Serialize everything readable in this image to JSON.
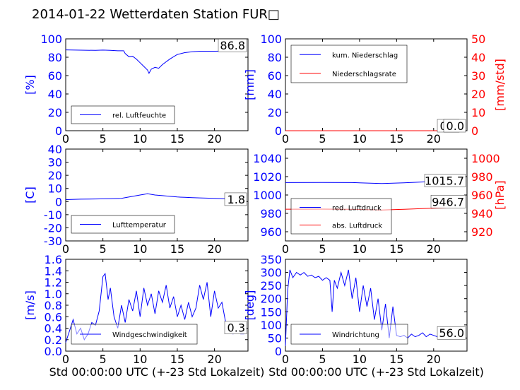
{
  "title": "2014-01-22 Wetterdaten Station FUR□",
  "colors": {
    "left_axis": "#0000ff",
    "right_axis": "#ff0000",
    "series_blue": "#0000ff",
    "series_red": "#ff0000"
  },
  "chart_data": [
    {
      "type": "line",
      "panel": "top-left",
      "ylabel": "[%]",
      "xlim": [
        0,
        24.5
      ],
      "ylim": [
        0,
        100
      ],
      "xticks": [
        0,
        5,
        10,
        15,
        20
      ],
      "yticks": [
        0,
        20,
        40,
        60,
        80,
        100
      ],
      "legend": {
        "position": "lower-left"
      },
      "last_value_label": "86.8",
      "series": [
        {
          "name": "rel. Luftfeuchte",
          "color": "#0000ff",
          "points": [
            [
              0,
              88
            ],
            [
              2,
              87.7
            ],
            [
              4,
              87.5
            ],
            [
              5,
              87.8
            ],
            [
              6,
              87.5
            ],
            [
              7,
              87
            ],
            [
              7.8,
              87
            ],
            [
              8,
              84
            ],
            [
              8.5,
              80.5
            ],
            [
              9,
              81
            ],
            [
              9.5,
              78
            ],
            [
              10,
              74
            ],
            [
              10.5,
              70
            ],
            [
              11,
              66
            ],
            [
              11.2,
              62.5
            ],
            [
              11.5,
              67
            ],
            [
              12,
              69
            ],
            [
              12.5,
              68
            ],
            [
              13,
              72
            ],
            [
              14,
              78
            ],
            [
              15,
              83
            ],
            [
              16,
              85
            ],
            [
              17,
              86
            ],
            [
              18,
              86.5
            ],
            [
              20,
              86.5
            ],
            [
              22,
              86.8
            ],
            [
              24,
              86.8
            ]
          ]
        }
      ]
    },
    {
      "type": "line",
      "panel": "top-right",
      "ylabel": "[mm]",
      "ylabel_right": "[mm/std]",
      "xlim": [
        0,
        24.5
      ],
      "ylim": [
        0,
        100
      ],
      "ylim_right": [
        0,
        50
      ],
      "xticks": [
        0,
        5,
        10,
        15,
        20
      ],
      "yticks": [
        0,
        20,
        40,
        60,
        80,
        100
      ],
      "yticks_right": [
        0,
        10,
        20,
        30,
        40,
        50
      ],
      "legend": {
        "position": "top-left"
      },
      "last_value_label": "0.0",
      "last_value_label_2": "0.0",
      "series": [
        {
          "name": "kum. Niederschlag",
          "color": "#0000ff",
          "points": [
            [
              0,
              0
            ],
            [
              24,
              0
            ]
          ]
        },
        {
          "name": "Niederschlagsrate",
          "color": "#ff0000",
          "axis": "right",
          "points": [
            [
              0,
              0
            ],
            [
              24,
              0
            ]
          ]
        }
      ]
    },
    {
      "type": "line",
      "panel": "middle-left",
      "ylabel": "[C]",
      "xlim": [
        0,
        24.5
      ],
      "ylim": [
        -30,
        40
      ],
      "xticks": [
        0,
        5,
        10,
        15,
        20
      ],
      "yticks": [
        -30,
        -20,
        -10,
        0,
        10,
        20,
        30,
        40
      ],
      "legend": {
        "position": "lower-left"
      },
      "last_value_label": "1.8",
      "series": [
        {
          "name": "Lufttemperatur",
          "color": "#0000ff",
          "points": [
            [
              0,
              1.5
            ],
            [
              2,
              1.8
            ],
            [
              4,
              2
            ],
            [
              6,
              2.2
            ],
            [
              7.5,
              2.4
            ],
            [
              8,
              3
            ],
            [
              9,
              4
            ],
            [
              10,
              5
            ],
            [
              10.5,
              5.5
            ],
            [
              11,
              6
            ],
            [
              11.5,
              5.5
            ],
            [
              12,
              5
            ],
            [
              13,
              4.5
            ],
            [
              14,
              4
            ],
            [
              15,
              3.5
            ],
            [
              16,
              3.2
            ],
            [
              17,
              3
            ],
            [
              18,
              2.8
            ],
            [
              20,
              2.4
            ],
            [
              22,
              2
            ],
            [
              24,
              1.8
            ]
          ]
        }
      ]
    },
    {
      "type": "line",
      "panel": "middle-right",
      "ylabel_right": "[hPa]",
      "xlim": [
        0,
        24.5
      ],
      "ylim": [
        950,
        1050
      ],
      "ylim_right": [
        910,
        1010
      ],
      "xticks": [
        0,
        5,
        10,
        15,
        20
      ],
      "yticks": [
        960,
        980,
        1000,
        1020,
        1040
      ],
      "yticks_right": [
        920,
        940,
        960,
        980,
        1000
      ],
      "legend": {
        "position": "lower-left"
      },
      "last_value_label": "1015.7",
      "last_value_label_2": "946.7",
      "series": [
        {
          "name": "red. Luftdruck",
          "color": "#0000ff",
          "points": [
            [
              0,
              1013.5
            ],
            [
              5,
              1013.7
            ],
            [
              9,
              1013.5
            ],
            [
              13,
              1012.5
            ],
            [
              16,
              1013.3
            ],
            [
              20,
              1014.7
            ],
            [
              24,
              1015.7
            ]
          ]
        },
        {
          "name": "abs. Luftdruck",
          "color": "#ff0000",
          "axis": "right",
          "points": [
            [
              0,
              944.5
            ],
            [
              5,
              944.6
            ],
            [
              9,
              944.4
            ],
            [
              13,
              943.6
            ],
            [
              16,
              944.4
            ],
            [
              20,
              945.7
            ],
            [
              24,
              946.7
            ]
          ]
        }
      ]
    },
    {
      "type": "line",
      "panel": "bottom-left",
      "ylabel": "[m/s]",
      "xlabel": "Std 00:00:00 UTC (+-23 Std Lokalzeit)",
      "xlim": [
        0,
        24.5
      ],
      "ylim": [
        0,
        1.6
      ],
      "xticks": [
        0,
        5,
        10,
        15,
        20
      ],
      "yticks": [
        0.0,
        0.2,
        0.4,
        0.6,
        0.8,
        1.0,
        1.2,
        1.4,
        1.6
      ],
      "legend": {
        "position": "lower-center"
      },
      "last_value_label": "0.3",
      "series": [
        {
          "name": "Windgeschwindigkeit",
          "color": "#0000ff",
          "points": [
            [
              0,
              0.15
            ],
            [
              0.5,
              0.35
            ],
            [
              1,
              0.55
            ],
            [
              1.5,
              0.3
            ],
            [
              2,
              0.4
            ],
            [
              2.5,
              0.2
            ],
            [
              3,
              0.3
            ],
            [
              3.5,
              0.5
            ],
            [
              4,
              0.45
            ],
            [
              4.5,
              0.7
            ],
            [
              5,
              1.3
            ],
            [
              5.3,
              1.35
            ],
            [
              5.7,
              0.9
            ],
            [
              6,
              1.1
            ],
            [
              6.5,
              0.6
            ],
            [
              7,
              0.4
            ],
            [
              7.5,
              0.8
            ],
            [
              8,
              0.5
            ],
            [
              8.5,
              0.9
            ],
            [
              9,
              0.7
            ],
            [
              9.5,
              1.05
            ],
            [
              10,
              0.6
            ],
            [
              10.5,
              1.1
            ],
            [
              11,
              0.8
            ],
            [
              11.5,
              1.0
            ],
            [
              12,
              0.65
            ],
            [
              12.5,
              1.05
            ],
            [
              13,
              0.85
            ],
            [
              13.5,
              1.15
            ],
            [
              14,
              0.75
            ],
            [
              14.5,
              0.95
            ],
            [
              15,
              0.6
            ],
            [
              15.5,
              0.8
            ],
            [
              16,
              0.55
            ],
            [
              16.5,
              0.85
            ],
            [
              17,
              0.6
            ],
            [
              17.5,
              0.75
            ],
            [
              18,
              1.15
            ],
            [
              18.5,
              0.9
            ],
            [
              19,
              1.2
            ],
            [
              19.5,
              0.6
            ],
            [
              20,
              1.05
            ],
            [
              20.5,
              0.75
            ],
            [
              21,
              0.85
            ],
            [
              21.5,
              0.5
            ],
            [
              22,
              0.4
            ],
            [
              22.5,
              0.3
            ],
            [
              23,
              0.45
            ],
            [
              23.5,
              0.3
            ],
            [
              24,
              0.3
            ]
          ]
        }
      ]
    },
    {
      "type": "line",
      "panel": "bottom-right",
      "ylabel": "[deg]",
      "xlabel": "Std 00:00:00 UTC (+-23 Std Lokalzeit)",
      "xlim": [
        0,
        24.5
      ],
      "ylim": [
        0,
        350
      ],
      "xticks": [
        0,
        5,
        10,
        15,
        20
      ],
      "yticks": [
        0,
        50,
        100,
        150,
        200,
        250,
        300,
        350
      ],
      "legend": {
        "position": "lower-left"
      },
      "last_value_label": "56.0",
      "series": [
        {
          "name": "Windrichtung",
          "color": "#0000ff",
          "points": [
            [
              0,
              20
            ],
            [
              0.3,
              230
            ],
            [
              0.6,
              310
            ],
            [
              1,
              280
            ],
            [
              1.5,
              300
            ],
            [
              2,
              290
            ],
            [
              2.5,
              300
            ],
            [
              3,
              285
            ],
            [
              3.5,
              290
            ],
            [
              4,
              280
            ],
            [
              4.5,
              285
            ],
            [
              5,
              270
            ],
            [
              5.5,
              280
            ],
            [
              6,
              270
            ],
            [
              6.3,
              150
            ],
            [
              6.6,
              270
            ],
            [
              7,
              240
            ],
            [
              7.5,
              300
            ],
            [
              8,
              250
            ],
            [
              8.5,
              310
            ],
            [
              9,
              200
            ],
            [
              9.5,
              280
            ],
            [
              10,
              150
            ],
            [
              10.5,
              250
            ],
            [
              11,
              170
            ],
            [
              11.5,
              240
            ],
            [
              12,
              120
            ],
            [
              12.5,
              200
            ],
            [
              13,
              80
            ],
            [
              13.5,
              180
            ],
            [
              14,
              50
            ],
            [
              14.5,
              170
            ],
            [
              15,
              60
            ],
            [
              15.5,
              55
            ],
            [
              16,
              60
            ],
            [
              16.5,
              50
            ],
            [
              17,
              65
            ],
            [
              17.5,
              55
            ],
            [
              18,
              60
            ],
            [
              18.5,
              70
            ],
            [
              19,
              55
            ],
            [
              19.5,
              65
            ],
            [
              20,
              60
            ],
            [
              20.5,
              55
            ],
            [
              21,
              60
            ],
            [
              21.5,
              65
            ],
            [
              22,
              55
            ],
            [
              23,
              60
            ],
            [
              24,
              56
            ]
          ]
        }
      ]
    }
  ]
}
